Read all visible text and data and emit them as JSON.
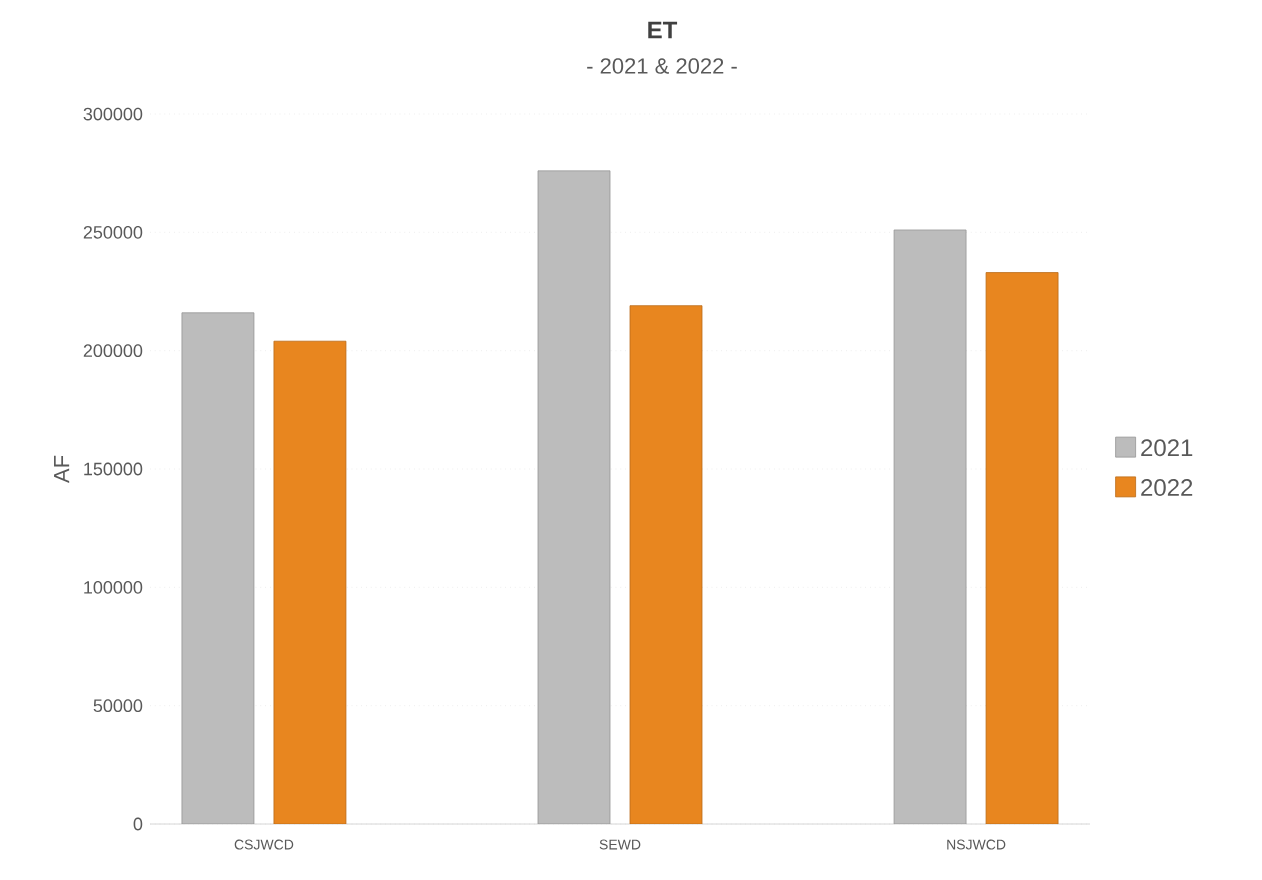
{
  "chart_data": {
    "type": "bar",
    "title": "ET",
    "subtitle": "- 2021 & 2022 -",
    "ylabel": "AF",
    "categories": [
      "CSJWCD",
      "SEWD",
      "NSJWCD"
    ],
    "series": [
      {
        "name": "2021",
        "color": "#bcbcbc",
        "values": [
          216000,
          276000,
          251000
        ]
      },
      {
        "name": "2022",
        "color": "#e8861f",
        "values": [
          204000,
          219000,
          233000
        ]
      }
    ],
    "ylim": [
      0,
      300000
    ],
    "yticks": [
      0,
      50000,
      100000,
      150000,
      200000,
      250000,
      300000
    ],
    "grid": "y",
    "legend": "right"
  }
}
